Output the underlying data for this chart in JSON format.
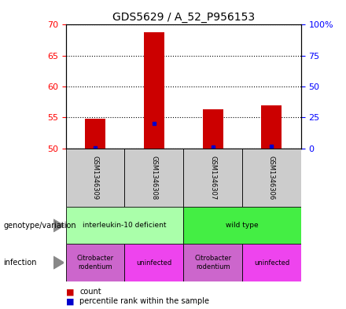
{
  "title": "GDS5629 / A_52_P956153",
  "samples": [
    "GSM1346309",
    "GSM1346308",
    "GSM1346307",
    "GSM1346306"
  ],
  "counts": [
    54.8,
    68.8,
    56.3,
    57.0
  ],
  "percentile_ranks": [
    0.5,
    20.0,
    1.0,
    1.5
  ],
  "ylim": [
    50,
    70
  ],
  "yticks": [
    50,
    55,
    60,
    65,
    70
  ],
  "y2_ticks": [
    0,
    25,
    50,
    75,
    100
  ],
  "y2_labels": [
    "0",
    "25",
    "50",
    "75",
    "100%"
  ],
  "bar_bottom": 50,
  "bar_color": "#cc0000",
  "percentile_color": "#0000cc",
  "genotype_groups": [
    {
      "label": "interleukin-10 deficient",
      "cols": [
        0,
        1
      ],
      "color": "#aaffaa"
    },
    {
      "label": "wild type",
      "cols": [
        2,
        3
      ],
      "color": "#44ee44"
    }
  ],
  "infection_groups": [
    {
      "label": "Citrobacter\nrodentium",
      "cols": [
        0
      ],
      "color": "#cc66cc"
    },
    {
      "label": "uninfected",
      "cols": [
        1
      ],
      "color": "#ee44ee"
    },
    {
      "label": "Citrobacter\nrodentium",
      "cols": [
        2
      ],
      "color": "#cc66cc"
    },
    {
      "label": "uninfected",
      "cols": [
        3
      ],
      "color": "#ee44ee"
    }
  ],
  "sample_bg_color": "#cccccc",
  "tick_fontsize": 8,
  "title_fontsize": 10,
  "bar_width": 0.35
}
